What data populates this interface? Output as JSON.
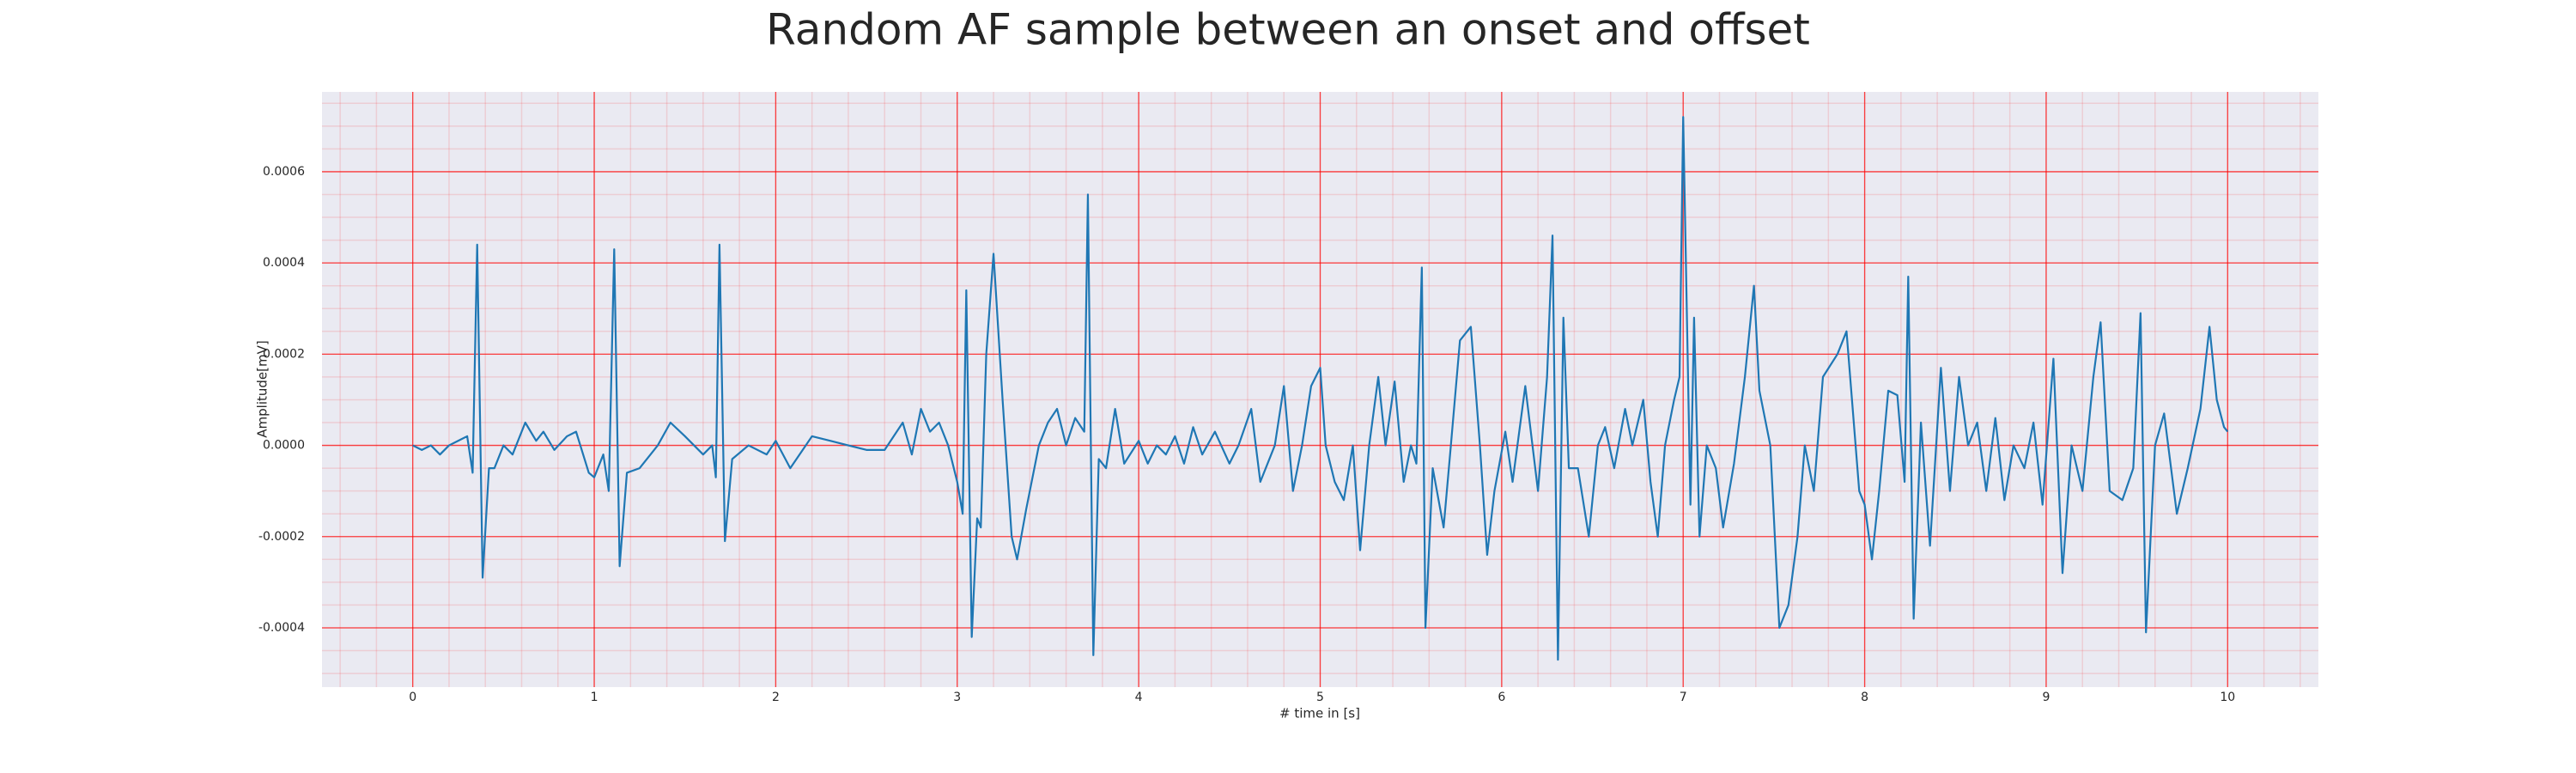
{
  "chart_data": {
    "type": "line",
    "title": "Random AF sample between an onset and offset",
    "x_label": "# time in [s]",
    "y_label": "Amplitude[mV]",
    "color": "#1f77b4",
    "grid": true,
    "grid_color": "#ff0000",
    "minor_grid": true,
    "xlim": [
      -0.5,
      10.5
    ],
    "ylim": [
      -0.00053,
      0.000775
    ],
    "xticks": [
      0,
      1,
      2,
      3,
      4,
      5,
      6,
      7,
      8,
      9,
      10
    ],
    "yticks": [
      -0.0004,
      -0.0002,
      {
        "value": 0,
        "label": "0.0000"
      },
      0.0002,
      0.0004,
      0.0006
    ],
    "x": [
      0,
      0.05,
      0.1,
      0.15,
      0.2,
      0.25,
      0.3,
      0.33,
      0.355,
      0.385,
      0.42,
      0.45,
      0.5,
      0.55,
      0.62,
      0.68,
      0.72,
      0.78,
      0.85,
      0.9,
      0.97,
      1.0,
      1.05,
      1.08,
      1.11,
      1.14,
      1.18,
      1.25,
      1.35,
      1.42,
      1.5,
      1.6,
      1.65,
      1.67,
      1.69,
      1.72,
      1.76,
      1.85,
      1.95,
      2.0,
      2.08,
      2.2,
      2.3,
      2.4,
      2.5,
      2.6,
      2.7,
      2.75,
      2.8,
      2.85,
      2.9,
      2.95,
      3.0,
      3.03,
      3.05,
      3.08,
      3.11,
      3.13,
      3.16,
      3.2,
      3.25,
      3.3,
      3.33,
      3.38,
      3.45,
      3.5,
      3.55,
      3.6,
      3.65,
      3.7,
      3.72,
      3.75,
      3.78,
      3.82,
      3.87,
      3.92,
      4.0,
      4.05,
      4.1,
      4.15,
      4.2,
      4.25,
      4.3,
      4.35,
      4.42,
      4.5,
      4.55,
      4.62,
      4.67,
      4.75,
      4.8,
      4.85,
      4.9,
      4.95,
      5.0,
      5.03,
      5.08,
      5.13,
      5.18,
      5.22,
      5.27,
      5.32,
      5.36,
      5.41,
      5.46,
      5.5,
      5.53,
      5.56,
      5.58,
      5.62,
      5.68,
      5.72,
      5.77,
      5.83,
      5.88,
      5.92,
      5.96,
      6.02,
      6.06,
      6.13,
      6.2,
      6.25,
      6.28,
      6.31,
      6.34,
      6.37,
      6.42,
      6.48,
      6.53,
      6.57,
      6.62,
      6.68,
      6.72,
      6.78,
      6.82,
      6.86,
      6.9,
      6.95,
      6.98,
      7.0,
      7.04,
      7.06,
      7.09,
      7.13,
      7.18,
      7.22,
      7.28,
      7.34,
      7.39,
      7.42,
      7.48,
      7.53,
      7.58,
      7.63,
      7.67,
      7.72,
      7.77,
      7.85,
      7.9,
      7.93,
      7.97,
      8.0,
      8.04,
      8.08,
      8.13,
      8.18,
      8.22,
      8.24,
      8.27,
      8.31,
      8.36,
      8.42,
      8.47,
      8.52,
      8.57,
      8.62,
      8.67,
      8.72,
      8.77,
      8.82,
      8.88,
      8.93,
      8.98,
      9.04,
      9.09,
      9.14,
      9.2,
      9.26,
      9.3,
      9.35,
      9.42,
      9.48,
      9.52,
      9.55,
      9.6,
      9.65,
      9.72,
      9.78,
      9.85,
      9.9,
      9.94,
      9.98,
      10.0
    ],
    "values": [
      0,
      -1e-05,
      0,
      -2e-05,
      0,
      1e-05,
      2e-05,
      -6e-05,
      0.00044,
      -0.00029,
      -5e-05,
      -5e-05,
      0,
      -2e-05,
      5e-05,
      1e-05,
      3e-05,
      -1e-05,
      2e-05,
      3e-05,
      -6e-05,
      -7e-05,
      -2e-05,
      -0.0001,
      0.00043,
      -0.000265,
      -6e-05,
      -5e-05,
      0,
      5e-05,
      2e-05,
      -2e-05,
      0,
      -7e-05,
      0.00044,
      -0.00021,
      -3e-05,
      0,
      -2e-05,
      1e-05,
      -5e-05,
      2e-05,
      1e-05,
      0,
      -1e-05,
      -1e-05,
      5e-05,
      -2e-05,
      8e-05,
      3e-05,
      5e-05,
      0,
      -8e-05,
      -0.00015,
      0.00034,
      -0.00042,
      -0.00016,
      -0.00018,
      0.0002,
      0.00042,
      0.0001,
      -0.0002,
      -0.00025,
      -0.00014,
      0,
      5e-05,
      8e-05,
      0,
      6e-05,
      3e-05,
      0.00055,
      -0.00046,
      -3e-05,
      -5e-05,
      8e-05,
      -4e-05,
      1e-05,
      -4e-05,
      0,
      -2e-05,
      2e-05,
      -4e-05,
      4e-05,
      -2e-05,
      3e-05,
      -4e-05,
      0,
      8e-05,
      -8e-05,
      0,
      0.00013,
      -0.0001,
      0,
      0.00013,
      0.00017,
      0,
      -8e-05,
      -0.00012,
      0,
      -0.00023,
      0,
      0.00015,
      0,
      0.00014,
      -8e-05,
      0,
      -4e-05,
      0.00039,
      -0.0004,
      -5e-05,
      -0.00018,
      0,
      0.00023,
      0.00026,
      0,
      -0.00024,
      -0.0001,
      3e-05,
      -8e-05,
      0.00013,
      -0.0001,
      0.00015,
      0.00046,
      -0.00047,
      0.00028,
      -5e-05,
      -5e-05,
      -0.0002,
      0,
      4e-05,
      -5e-05,
      8e-05,
      0,
      0.0001,
      -8e-05,
      -0.0002,
      0,
      0.0001,
      0.00015,
      0.00072,
      -0.00013,
      0.00028,
      -0.0002,
      0,
      -5e-05,
      -0.00018,
      -4e-05,
      0.00015,
      0.00035,
      0.00012,
      0,
      -0.0004,
      -0.00035,
      -0.0002,
      0,
      -0.0001,
      0.00015,
      0.0002,
      0.00025,
      0.0001,
      -0.0001,
      -0.00013,
      -0.00025,
      -0.0001,
      0.00012,
      0.00011,
      -8e-05,
      0.00037,
      -0.00038,
      5e-05,
      -0.00022,
      0.00017,
      -0.0001,
      0.00015,
      0,
      5e-05,
      -0.0001,
      6e-05,
      -0.00012,
      0,
      -5e-05,
      5e-05,
      -0.00013,
      0.00019,
      -0.00028,
      0,
      -0.0001,
      0.00015,
      0.00027,
      -0.0001,
      -0.00012,
      -5e-05,
      0.00029,
      -0.00041,
      0,
      7e-05,
      -0.00015,
      -5e-05,
      8e-05,
      0.00026,
      0.0001,
      4e-05,
      3e-05
    ]
  }
}
